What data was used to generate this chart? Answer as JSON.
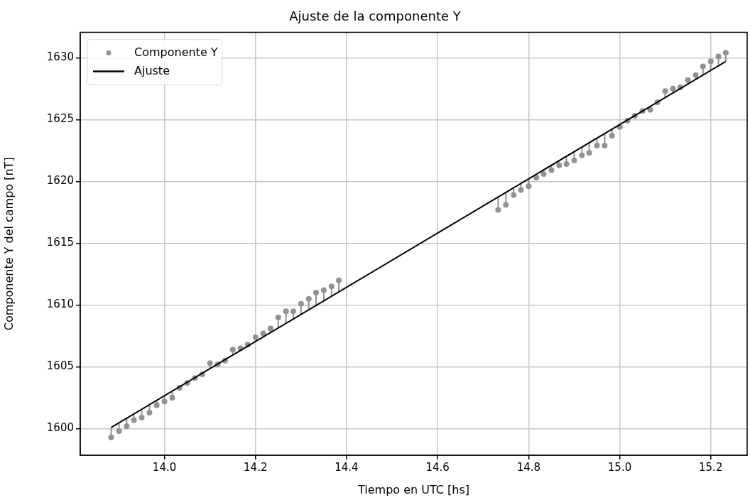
{
  "chart_data": {
    "type": "scatter",
    "title": "Ajuste de la componente Y",
    "xlabel": "Tiempo en UTC [hs]",
    "ylabel": "Componente Y del campo [nT]",
    "xlim": [
      13.815,
      15.28
    ],
    "xticks": [
      {
        "value": 14.0,
        "label": "14.0"
      },
      {
        "value": 14.2,
        "label": "14.2"
      },
      {
        "value": 14.4,
        "label": "14.4"
      },
      {
        "value": 14.6,
        "label": "14.6"
      },
      {
        "value": 14.8,
        "label": "14.8"
      },
      {
        "value": 15.0,
        "label": "15.0"
      },
      {
        "value": 15.2,
        "label": "15.2"
      }
    ],
    "ylim": [
      1597.85,
      1632.05
    ],
    "yticks": [
      1600,
      1605,
      1610,
      1615,
      1620,
      1625,
      1630
    ],
    "grid": true,
    "legend": "top left",
    "series": [
      {
        "name": "Componente Y",
        "type": "scatter",
        "color": "#929292",
        "marker": "circle",
        "x": [
          13.883,
          13.9,
          13.917,
          13.933,
          13.95,
          13.967,
          13.983,
          14.0,
          14.017,
          14.033,
          14.05,
          14.067,
          14.083,
          14.1,
          14.117,
          14.133,
          14.15,
          14.167,
          14.183,
          14.2,
          14.217,
          14.233,
          14.25,
          14.267,
          14.283,
          14.3,
          14.317,
          14.333,
          14.35,
          14.367,
          14.383,
          14.733,
          14.75,
          14.767,
          14.783,
          14.8,
          14.817,
          14.833,
          14.85,
          14.867,
          14.883,
          14.9,
          14.917,
          14.933,
          14.95,
          14.967,
          14.983,
          15.0,
          15.017,
          15.033,
          15.05,
          15.067,
          15.083,
          15.1,
          15.117,
          15.133,
          15.15,
          15.167,
          15.183,
          15.2,
          15.217,
          15.233
        ],
        "values": [
          1599.3,
          1599.8,
          1600.2,
          1600.7,
          1600.9,
          1601.3,
          1601.9,
          1602.2,
          1602.5,
          1603.3,
          1603.7,
          1604.1,
          1604.4,
          1605.3,
          1605.2,
          1605.5,
          1606.4,
          1606.5,
          1606.8,
          1607.4,
          1607.7,
          1608.1,
          1609.0,
          1609.5,
          1609.5,
          1610.1,
          1610.5,
          1611.0,
          1611.2,
          1611.5,
          1612.0,
          1617.7,
          1618.1,
          1618.9,
          1619.3,
          1619.6,
          1620.3,
          1620.6,
          1620.9,
          1621.3,
          1621.4,
          1621.7,
          1622.1,
          1622.3,
          1622.9,
          1622.9,
          1623.7,
          1624.4,
          1624.9,
          1625.3,
          1625.7,
          1625.8,
          1626.4,
          1627.3,
          1627.5,
          1627.6,
          1628.2,
          1628.6,
          1629.3,
          1629.7,
          1630.1,
          1630.4
        ],
        "errors": [
          [
            1599.3,
            1600.1
          ],
          [
            1599.8,
            1600.4
          ],
          [
            1600.2,
            1600.8
          ],
          [
            1600.7,
            1601.2
          ],
          [
            1600.9,
            1601.5
          ],
          [
            1601.3,
            1601.9
          ],
          [
            1601.9,
            1602.2
          ],
          [
            1602.2,
            1602.6
          ],
          [
            1602.5,
            1603.0
          ],
          null,
          null,
          null,
          null,
          [
            1604.8,
            1605.3
          ],
          null,
          null,
          [
            1605.9,
            1606.4
          ],
          [
            1606.3,
            1606.5
          ],
          [
            1606.6,
            1606.8
          ],
          [
            1607.0,
            1607.4
          ],
          [
            1607.4,
            1607.7
          ],
          [
            1607.7,
            1608.1
          ],
          [
            1608.1,
            1609.0
          ],
          [
            1608.5,
            1609.5
          ],
          [
            1608.8,
            1609.5
          ],
          [
            1609.2,
            1610.1
          ],
          [
            1609.6,
            1610.5
          ],
          [
            1609.9,
            1611.0
          ],
          [
            1610.3,
            1611.2
          ],
          [
            1610.7,
            1611.5
          ],
          [
            1611.0,
            1612.0
          ],
          [
            1617.7,
            1618.7
          ],
          [
            1618.1,
            1619.1
          ],
          [
            1618.9,
            1619.4
          ],
          [
            1619.3,
            1619.8
          ],
          [
            1619.6,
            1620.2
          ],
          [
            1620.3,
            1620.5
          ],
          [
            1620.6,
            1620.9
          ],
          [
            1620.9,
            1621.3
          ],
          [
            1621.3,
            1621.6
          ],
          [
            1621.4,
            1622.0
          ],
          [
            1621.7,
            1622.4
          ],
          [
            1622.1,
            1622.7
          ],
          [
            1622.3,
            1623.1
          ],
          [
            1622.9,
            1623.5
          ],
          [
            1622.9,
            1623.8
          ],
          [
            1623.7,
            1624.2
          ],
          [
            1624.4,
            1624.6
          ],
          null,
          null,
          null,
          [
            1625.8,
            1626.0
          ],
          null,
          [
            1626.8,
            1627.3
          ],
          [
            1627.1,
            1627.5
          ],
          null,
          [
            1627.9,
            1628.2
          ],
          [
            1628.2,
            1628.6
          ],
          [
            1628.6,
            1629.3
          ],
          [
            1629.0,
            1629.7
          ],
          [
            1629.3,
            1630.1
          ],
          [
            1629.7,
            1630.4
          ]
        ]
      },
      {
        "name": "Ajuste",
        "type": "line",
        "color": "#000000",
        "marker": "none",
        "line_style": "solid",
        "x": [
          13.883,
          15.233
        ],
        "values": [
          1600.1,
          1629.7
        ]
      }
    ]
  }
}
